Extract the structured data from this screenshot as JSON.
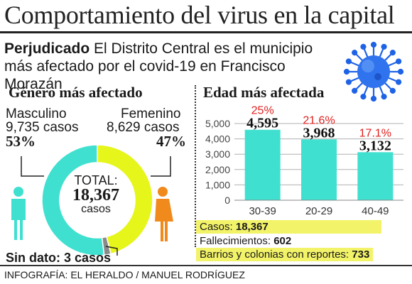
{
  "header": {
    "title": "Comportamiento del virus en la capital",
    "lead_bold": "Perjudicado",
    "lead_text": "El Distrito Central es el municipio más afectado por el covid-19 en Francisco Morazán"
  },
  "gender": {
    "heading": "Género más afectado",
    "male_label": "Masculino",
    "male_cases": "9,735 casos",
    "male_pct": "53%",
    "female_label": "Femenino",
    "female_cases": "8,629 casos",
    "female_pct": "47%",
    "total_label": "TOTAL:",
    "total_value": "18,367",
    "total_unit": "casos",
    "no_data": "Sin dato: 3 casos"
  },
  "age": {
    "heading": "Edad más afectada"
  },
  "stats": {
    "cases_label": "Casos:",
    "cases_value": "18,367",
    "deaths_label": "Fallecimientos:",
    "deaths_value": "602",
    "areas_label": "Barrios y colonias con reportes:",
    "areas_value": "733"
  },
  "credit": "INFOGRAFÍA: EL HERALDO / MANUEL RODRÍGUEZ",
  "colors": {
    "male": "#40e0d0",
    "female": "#e6f51a",
    "no_data": "#8a8a8a",
    "bars": "#40e0d0",
    "highlight": "#f3f36a",
    "pct_red": "#e02020",
    "virus": "#1e63e6"
  },
  "chart_data": [
    {
      "type": "pie",
      "title": "Género más afectado",
      "categories": [
        "Masculino",
        "Femenino",
        "Sin dato"
      ],
      "values": [
        9735,
        8629,
        3
      ],
      "percent_labels": [
        "53%",
        "47%",
        ""
      ]
    },
    {
      "type": "bar",
      "title": "Edad más afectada",
      "categories": [
        "30-39",
        "20-29",
        "40-49"
      ],
      "values": [
        4595,
        3968,
        3132
      ],
      "value_labels": [
        "4,595",
        "3,968",
        "3,132"
      ],
      "percent_labels": [
        "25%",
        "21.6%",
        "17.1%"
      ],
      "ylim": [
        0,
        5000
      ],
      "yticks": [
        0,
        1000,
        2000,
        3000,
        4000,
        5000
      ],
      "ytick_labels": [
        "0",
        "1,000",
        "2,000",
        "3,000",
        "4,000",
        "5,000"
      ],
      "grid": true
    }
  ]
}
